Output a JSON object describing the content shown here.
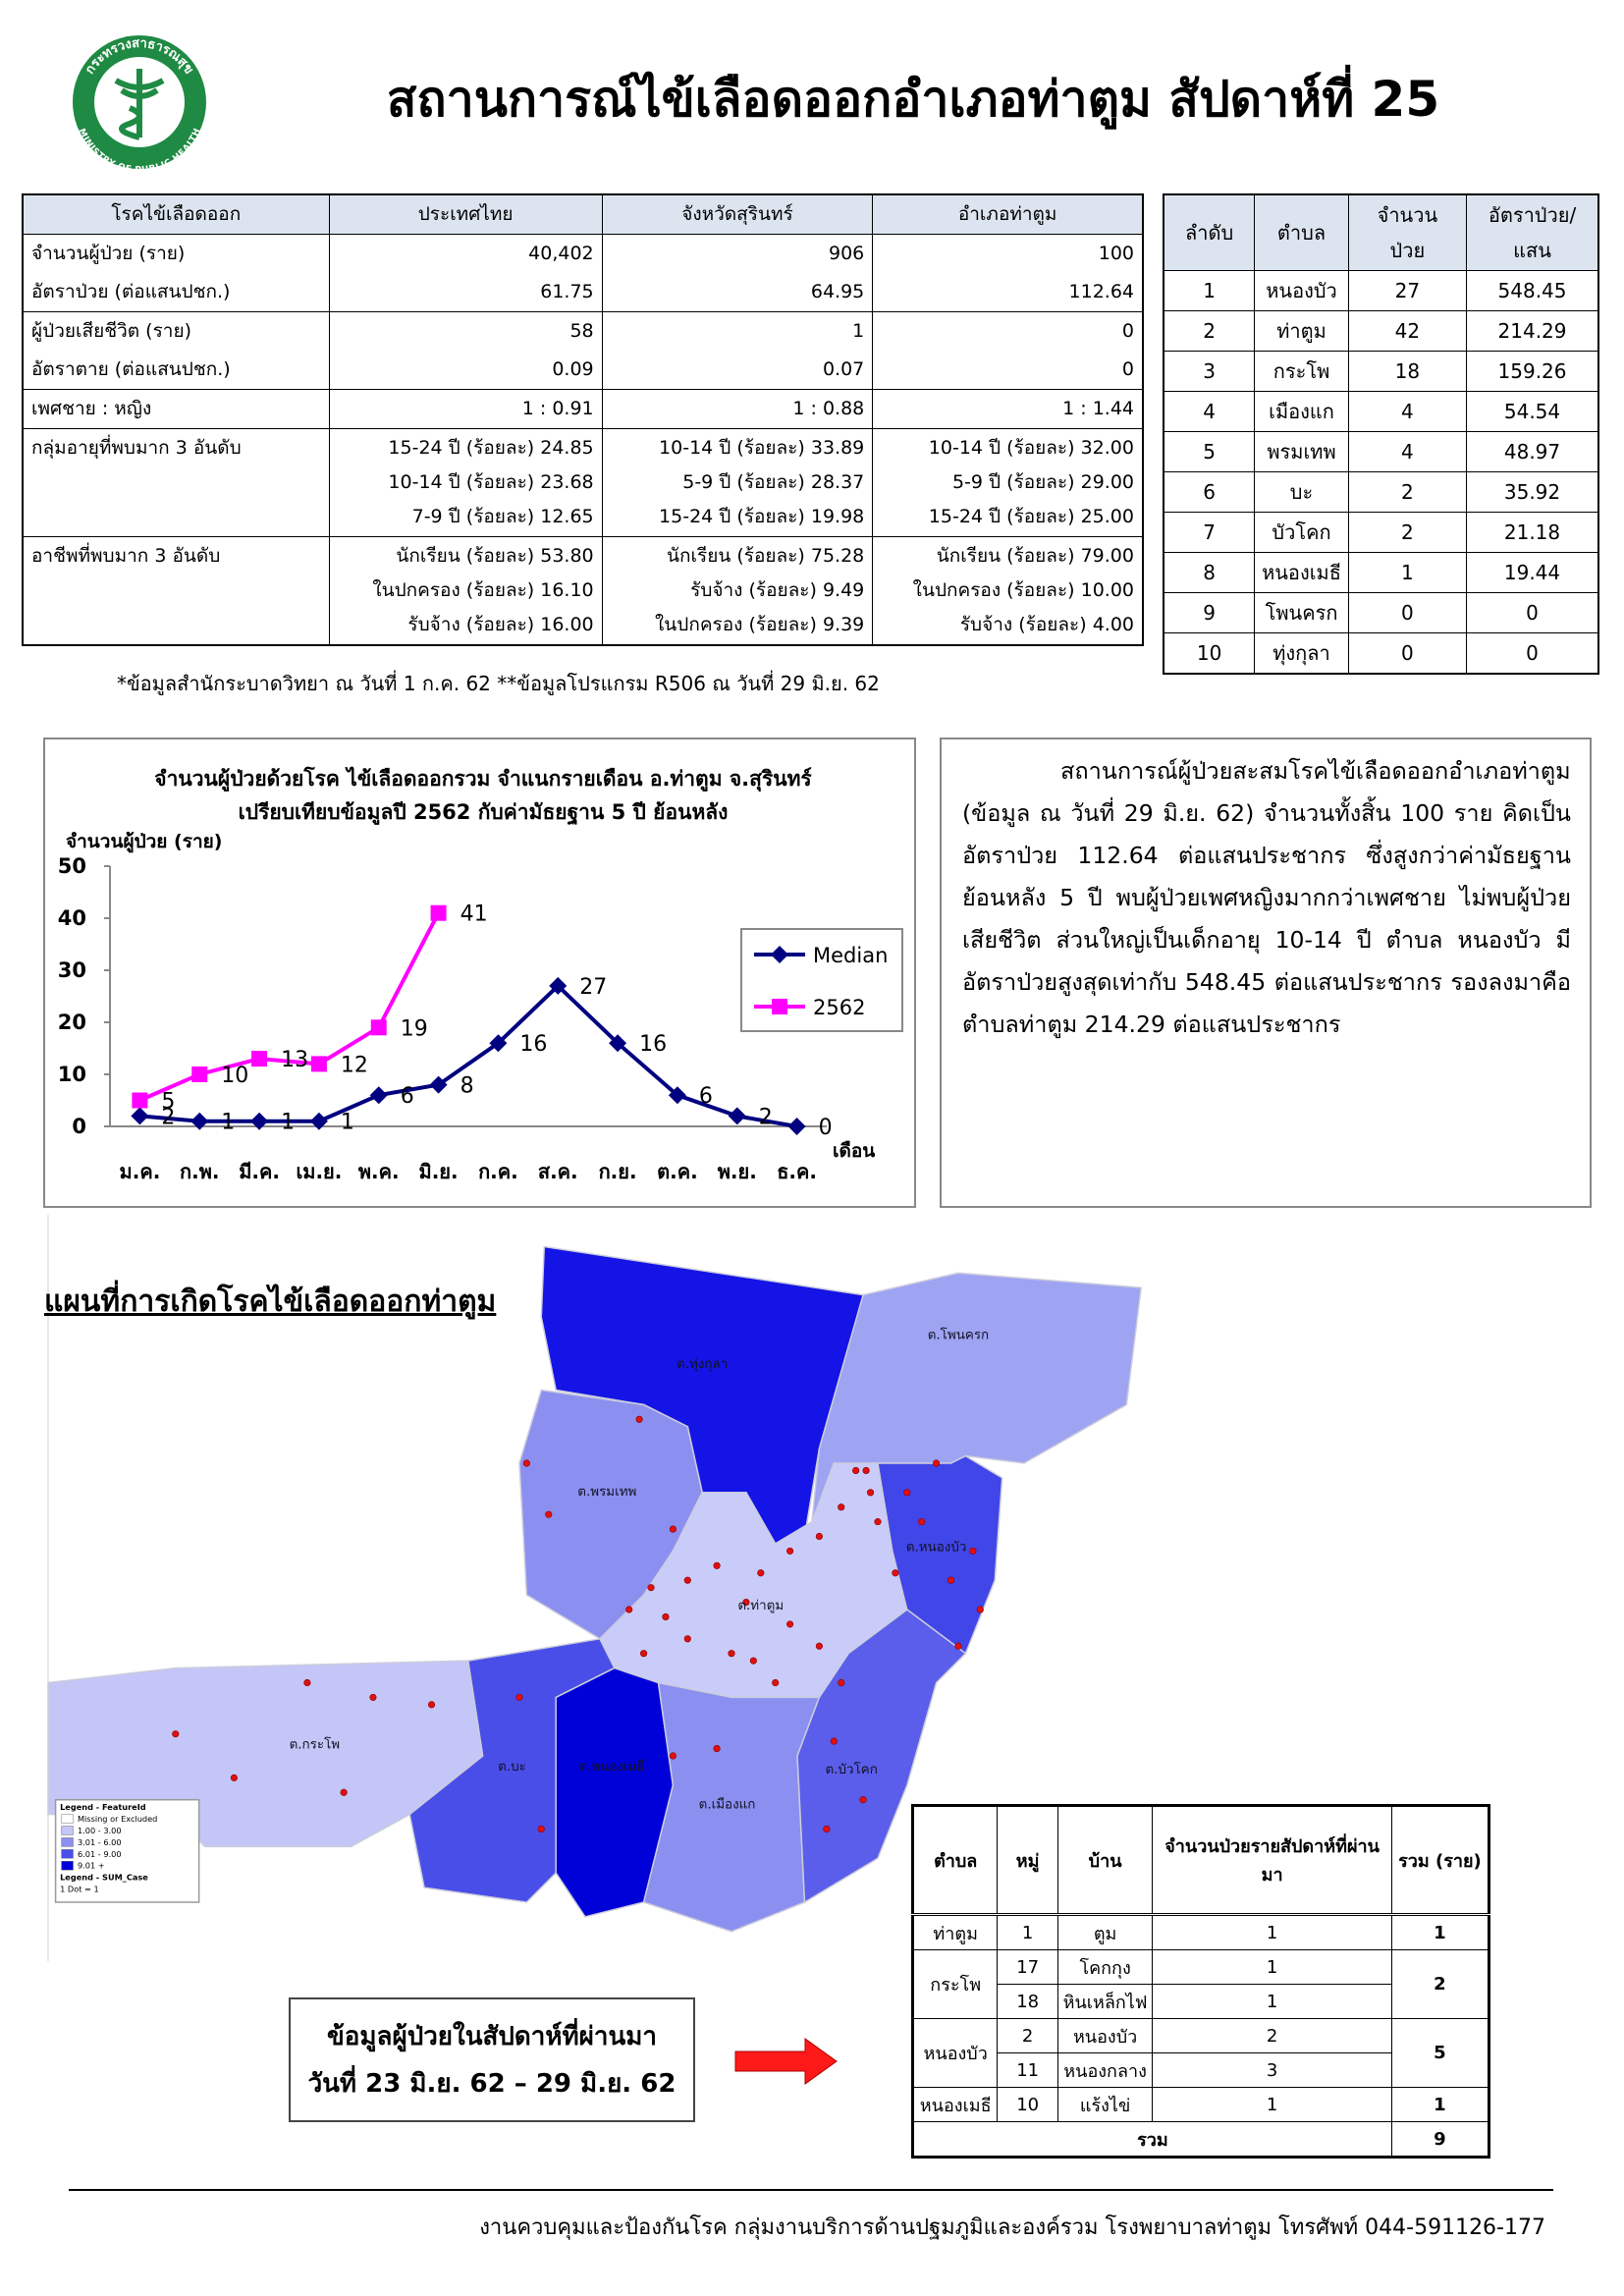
{
  "header": {
    "title": "สถานการณ์ไข้เลือดออกอำเภอท่าตูม สัปดาห์ที่ 25",
    "logo_top": "กระทรวงสาธารณสุข",
    "logo_bottom": "MINISTRY OF PUBLIC HEALTH"
  },
  "summary_table": {
    "header": [
      "โรคไข้เลือดออก",
      "ประเทศไทย",
      "จังหวัดสุรินทร์",
      "อำเภอท่าตูม"
    ],
    "rows": [
      [
        "จำนวนผู้ป่วย (ราย)",
        "40,402",
        "906",
        "100"
      ],
      [
        "อัตราป่วย (ต่อแสนปชก.)",
        "61.75",
        "64.95",
        "112.64"
      ],
      [
        "ผู้ป่วยเสียชีวิต (ราย)",
        "58",
        "1",
        "0"
      ],
      [
        "อัตราตาย (ต่อแสนปชก.)",
        "0.09",
        "0.07",
        "0"
      ],
      [
        "เพศชาย : หญิง",
        "1 : 0.91",
        "1 : 0.88",
        "1 : 1.44"
      ],
      [
        "กลุ่มอายุที่พบมาก 3 อันดับ",
        [
          "15-24 ปี (ร้อยละ) 24.85",
          "10-14 ปี (ร้อยละ) 23.68",
          "7-9 ปี (ร้อยละ) 12.65"
        ],
        [
          "10-14 ปี (ร้อยละ) 33.89",
          "5-9 ปี (ร้อยละ) 28.37",
          "15-24 ปี (ร้อยละ) 19.98"
        ],
        [
          "10-14 ปี (ร้อยละ) 32.00",
          "5-9 ปี (ร้อยละ) 29.00",
          "15-24 ปี (ร้อยละ) 25.00"
        ]
      ],
      [
        "อาชีพที่พบมาก 3 อันดับ",
        [
          "นักเรียน (ร้อยละ) 53.80",
          "ในปกครอง (ร้อยละ) 16.10",
          "รับจ้าง (ร้อยละ) 16.00"
        ],
        [
          "นักเรียน (ร้อยละ) 75.28",
          "รับจ้าง (ร้อยละ) 9.49",
          "ในปกครอง (ร้อยละ) 9.39"
        ],
        [
          "นักเรียน (ร้อยละ) 79.00",
          "ในปกครอง (ร้อยละ) 10.00",
          "รับจ้าง (ร้อยละ) 4.00"
        ]
      ]
    ]
  },
  "footnote": "*ข้อมูลสำนักระบาดวิทยา ณ วันที่ 1 ก.ค. 62 **ข้อมูลโปรแกรม R506 ณ วันที่ 29 มิ.ย. 62",
  "rank_table": {
    "header": [
      [
        "ลำดับ"
      ],
      [
        "ตำบล"
      ],
      [
        "จำนวน",
        "ป่วย"
      ],
      [
        "อัตราป่วย/",
        "แสน"
      ]
    ],
    "rows": [
      [
        1,
        "หนองบัว",
        27,
        548.45
      ],
      [
        2,
        "ท่าตูม",
        42,
        214.29
      ],
      [
        3,
        "กระโพ",
        18,
        159.26
      ],
      [
        4,
        "เมืองแก",
        4,
        54.54
      ],
      [
        5,
        "พรมเทพ",
        4,
        48.97
      ],
      [
        6,
        "บะ",
        2,
        35.92
      ],
      [
        7,
        "บัวโคก",
        2,
        21.18
      ],
      [
        8,
        "หนองเมธี",
        1,
        19.44
      ],
      [
        9,
        "โพนครก",
        0,
        0
      ],
      [
        10,
        "ทุ่งกุลา",
        0,
        0
      ]
    ]
  },
  "chart_data": {
    "type": "line",
    "title": [
      "จำนวนผู้ป่วยด้วยโรค  ไข้เลือดออกรวม  จำแนกรายเดือน  อ.ท่าตูม จ.สุรินทร์",
      "เปรียบเทียบข้อมูลปี  2562  กับค่ามัธยฐาน 5 ปี ย้อนหลัง"
    ],
    "y_label": "จำนวนผู้ป่วย (ราย)",
    "x_label": "เดือน",
    "categories": [
      "ม.ค.",
      "ก.พ.",
      "มี.ค.",
      "เม.ย.",
      "พ.ค.",
      "มิ.ย.",
      "ก.ค.",
      "ส.ค.",
      "ก.ย.",
      "ต.ค.",
      "พ.ย.",
      "ธ.ค."
    ],
    "series": [
      {
        "name": "Median",
        "color": "#000080",
        "values": [
          2,
          1,
          1,
          1,
          6,
          8,
          16,
          27,
          16,
          6,
          2,
          0
        ]
      },
      {
        "name": "2562",
        "color": "#ff00ff",
        "values": [
          5,
          10,
          13,
          12,
          19,
          41,
          null,
          null,
          null,
          null,
          null,
          null
        ]
      }
    ],
    "ylim": [
      0,
      50
    ],
    "yticks": [
      0,
      10,
      20,
      30,
      40,
      50
    ],
    "grid": false,
    "legend": "right"
  },
  "summary_text": "สถานการณ์ผู้ป่วยสะสมโรคไข้เลือดออกอำเภอท่าตูม (ข้อมูล ณ วันที่ 29 มิ.ย. 62) จำนวนทั้งสิ้น 100 ราย คิดเป็นอัตราป่วย 112.64 ต่อแสนประชากร ซึ่งสูงกว่าค่ามัธยฐานย้อนหลัง 5 ปี พบผู้ป่วยเพศหญิงมากกว่าเพศชาย ไม่พบผู้ป่วยเสียชีวิต  ส่วนใหญ่เป็นเด็กอายุ 10-14 ปี ตำบล หนองบัว มีอัตราป่วยสูงสุดเท่ากับ 548.45 ต่อแสนประชากร รองลงมาคือ ตำบลท่าตูม  214.29 ต่อแสนประชากร",
  "map": {
    "title": "แผนที่การเกิดโรคไข้เลือดออกท่าตูม",
    "labels": [
      "ต.ทุ่งกุลา",
      "ต.โพนครก",
      "ต.พรมเทพ",
      "ต.ท่าตูม",
      "ต.หนองบัว",
      "ต.กระโพ",
      "ต.บะ",
      "ต.หนองเมธี",
      "ต.เมืองแก",
      "ต.บัวโคก"
    ],
    "legend": [
      "Legend - FeatureId",
      "Missing or Excluded",
      "1.00 - 3.00",
      "3.01 - 6.00",
      "6.01 - 9.00",
      "9.01 +",
      "Legend - SUM_Case",
      "1 Dot = 1"
    ]
  },
  "week_box": [
    "ข้อมูลผู้ป่วยในสัปดาห์ที่ผ่านมา",
    "วันที่ 23 มิ.ย. 62 – 29 มิ.ย. 62"
  ],
  "weekly_table": {
    "header": [
      "ตำบล",
      "หมู่",
      "บ้าน",
      "จำนวนป่วยรายสัปดาห์ที่ผ่านมา",
      "รวม (ราย)"
    ],
    "groups": [
      {
        "tambon": "ท่าตูม",
        "total": 1,
        "rows": [
          {
            "moo": 1,
            "village": "ตูม",
            "cases": 1
          }
        ]
      },
      {
        "tambon": "กระโพ",
        "total": 2,
        "rows": [
          {
            "moo": 17,
            "village": "โคกกุง",
            "cases": 1
          },
          {
            "moo": 18,
            "village": "หินเหล็กไฟ",
            "cases": 1
          }
        ]
      },
      {
        "tambon": "หนองบัว",
        "total": 5,
        "rows": [
          {
            "moo": 2,
            "village": "หนองบัว",
            "cases": 2
          },
          {
            "moo": 11,
            "village": "หนองกลาง",
            "cases": 3
          }
        ]
      },
      {
        "tambon": "หนองเมธี",
        "total": 1,
        "rows": [
          {
            "moo": 10,
            "village": "แร้งไข่",
            "cases": 1
          }
        ]
      }
    ],
    "total_label": "รวม",
    "total": 9
  },
  "footer": "งานควบคุมและป้องกันโรค กลุ่มงานบริการด้านปฐมภูมิและองค์รวม  โรงพยาบาลท่าตูม  โทรศัพท์ 044-591126-177"
}
